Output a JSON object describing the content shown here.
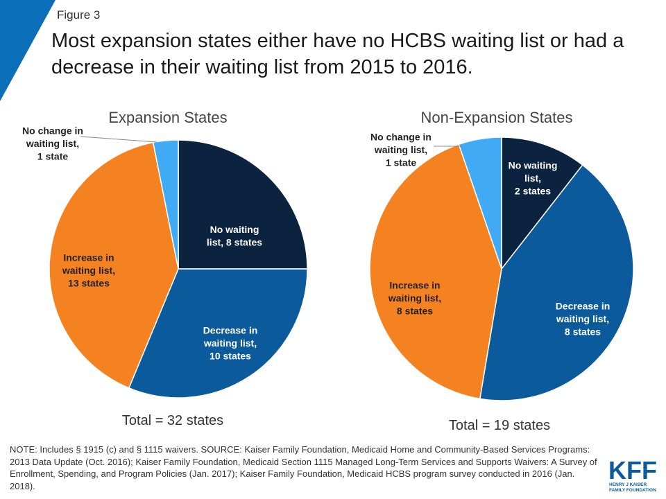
{
  "figure_label": "Figure 3",
  "title": "Most expansion states either have no HCBS waiting list or had a decrease in their waiting list from 2015 to 2016.",
  "note": "NOTE:  Includes § 1915 (c) and § 1115 waivers. SOURCE: Kaiser Family Foundation, Medicaid Home and Community-Based Services Programs:  2013 Data Update (Oct. 2016);  Kaiser Family Foundation, Medicaid Section 1115 Managed Long-Term Services and Supports Waivers: A Survey of Enrollment, Spending, and Program Policies (Jan. 2017); Kaiser Family Foundation, Medicaid HCBS program survey conducted in 2016 (Jan. 2018).",
  "logo": {
    "text": "KFF",
    "subtitle_line1": "HENRY J KAISER",
    "subtitle_line2": "FAMILY FOUNDATION"
  },
  "colors": {
    "accent": "#0a6fb8",
    "no_list": "#0c2340",
    "decrease": "#0a5a9c",
    "increase": "#f58220",
    "no_change": "#41aaf5"
  },
  "chart_data": [
    {
      "type": "pie",
      "title": "Expansion States",
      "total_label": "Total = 32 states",
      "slices": [
        {
          "category": "No waiting list",
          "value": 8,
          "label_lines": [
            "No waiting",
            "list, 8 states"
          ],
          "color": "#0c2340",
          "label_color": "#ffffff"
        },
        {
          "category": "Decrease in waiting list",
          "value": 10,
          "label_lines": [
            "Decrease in",
            "waiting list,",
            "10 states"
          ],
          "color": "#0a5a9c",
          "label_color": "#ffffff"
        },
        {
          "category": "Increase in waiting list",
          "value": 13,
          "label_lines": [
            "Increase in",
            "waiting list,",
            "13 states"
          ],
          "color": "#f58220",
          "label_color": "#222222"
        },
        {
          "category": "No change in waiting list",
          "value": 1,
          "label_lines": [
            "No change in",
            "waiting list,",
            "1 state"
          ],
          "color": "#41aaf5",
          "label_color": "#222222"
        }
      ]
    },
    {
      "type": "pie",
      "title": "Non-Expansion States",
      "total_label": "Total = 19 states",
      "slices": [
        {
          "category": "No waiting list",
          "value": 2,
          "label_lines": [
            "No waiting",
            "list,",
            "2 states"
          ],
          "color": "#0c2340",
          "label_color": "#ffffff"
        },
        {
          "category": "Decrease in waiting list",
          "value": 8,
          "label_lines": [
            "Decrease in",
            "waiting list,",
            "8 states"
          ],
          "color": "#0a5a9c",
          "label_color": "#ffffff"
        },
        {
          "category": "Increase in waiting list",
          "value": 8,
          "label_lines": [
            "Increase in",
            "waiting list,",
            "8 states"
          ],
          "color": "#f58220",
          "label_color": "#222222"
        },
        {
          "category": "No change in waiting list",
          "value": 1,
          "label_lines": [
            "No change in",
            "waiting list,",
            "1 state"
          ],
          "color": "#41aaf5",
          "label_color": "#222222"
        }
      ]
    }
  ]
}
